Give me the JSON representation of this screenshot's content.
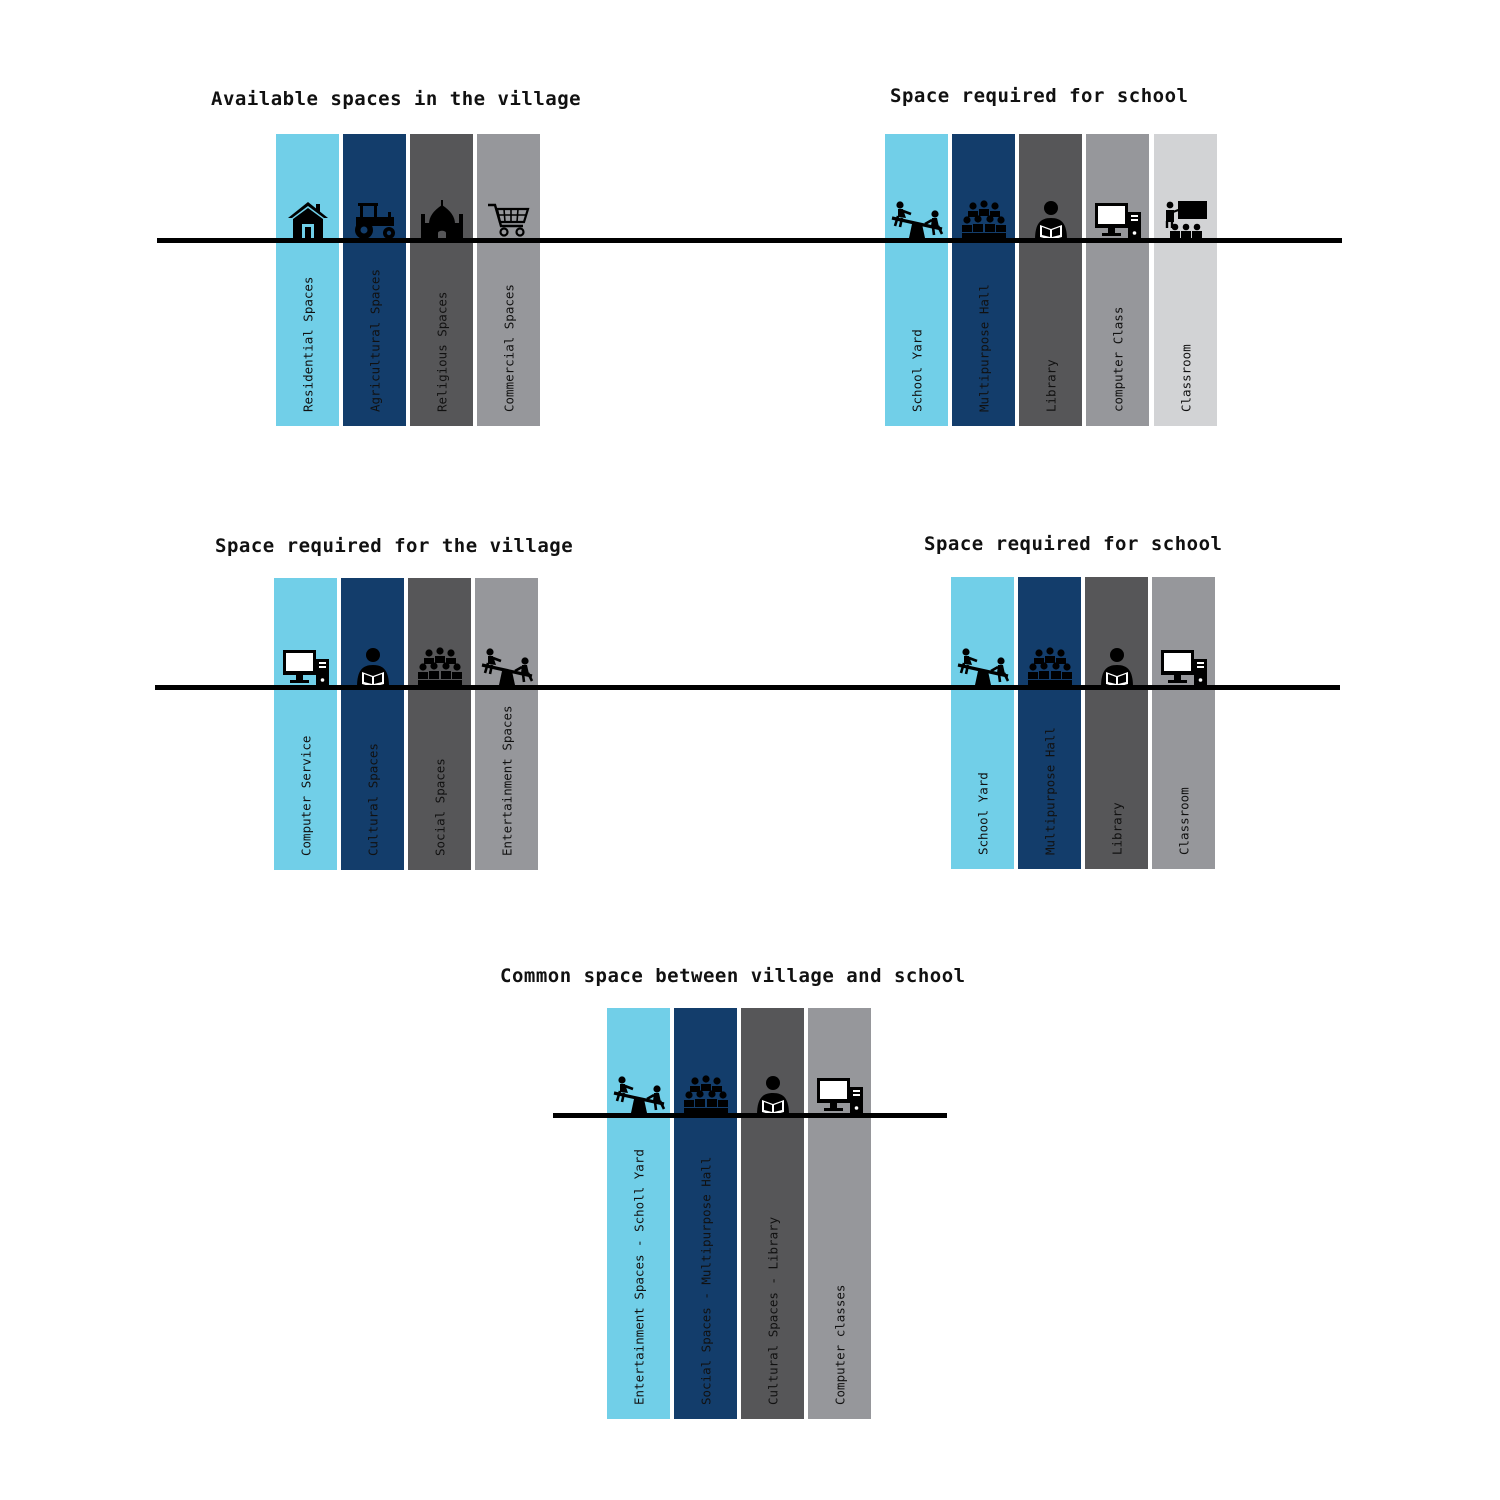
{
  "colors": {
    "light_blue": "#71cfe8",
    "navy": "#133d6b",
    "dark_gray": "#565658",
    "mid_gray": "#96979b",
    "light_gray": "#d2d3d5",
    "line": "#000000"
  },
  "groups": {
    "available_village": {
      "title": "Available spaces in the village",
      "columns": [
        {
          "label": "Residential Spaces",
          "icon": "house-icon",
          "color": "#71cfe8"
        },
        {
          "label": "Agricultural Spaces",
          "icon": "tractor-icon",
          "color": "#133d6b"
        },
        {
          "label": "Religious Spaces",
          "icon": "mosque-icon",
          "color": "#565658"
        },
        {
          "label": "Commercial Spaces",
          "icon": "shopping-cart-icon",
          "color": "#96979b"
        }
      ]
    },
    "school_required_1": {
      "title": "Space required for school",
      "columns": [
        {
          "label": "School Yard",
          "icon": "seesaw-icon",
          "color": "#71cfe8"
        },
        {
          "label": "Multipurpose Hall",
          "icon": "audience-icon",
          "color": "#133d6b"
        },
        {
          "label": "Library",
          "icon": "reader-icon",
          "color": "#565658"
        },
        {
          "label": "computer Class",
          "icon": "computer-icon",
          "color": "#96979b"
        },
        {
          "label": "Classroom",
          "icon": "classroom-icon",
          "color": "#d2d3d5"
        }
      ]
    },
    "village_required": {
      "title": "Space required for the village",
      "columns": [
        {
          "label": "Computer Service",
          "icon": "computer-icon",
          "color": "#71cfe8"
        },
        {
          "label": "Cultural Spaces",
          "icon": "reader-icon",
          "color": "#133d6b"
        },
        {
          "label": "Social Spaces",
          "icon": "audience-icon",
          "color": "#565658"
        },
        {
          "label": "Entertainment Spaces",
          "icon": "seesaw-icon",
          "color": "#96979b"
        }
      ]
    },
    "school_required_2": {
      "title": "Space required for school",
      "columns": [
        {
          "label": "School Yard",
          "icon": "seesaw-icon",
          "color": "#71cfe8"
        },
        {
          "label": "Multipurpose Hall",
          "icon": "audience-icon",
          "color": "#133d6b"
        },
        {
          "label": "Library",
          "icon": "reader-icon",
          "color": "#565658"
        },
        {
          "label": "Classroom",
          "icon": "computer-icon",
          "color": "#96979b"
        }
      ]
    },
    "common": {
      "title": "Common space between village and school",
      "columns": [
        {
          "label": "Entertainment Spaces - Scholl Yard",
          "icon": "seesaw-icon",
          "color": "#71cfe8"
        },
        {
          "label": "Social Spaces - Multipurpose Hall",
          "icon": "audience-icon",
          "color": "#133d6b"
        },
        {
          "label": "Cultural Spaces - Library",
          "icon": "reader-icon",
          "color": "#565658"
        },
        {
          "label": "Computer classes",
          "icon": "computer-icon",
          "color": "#96979b"
        }
      ]
    }
  }
}
